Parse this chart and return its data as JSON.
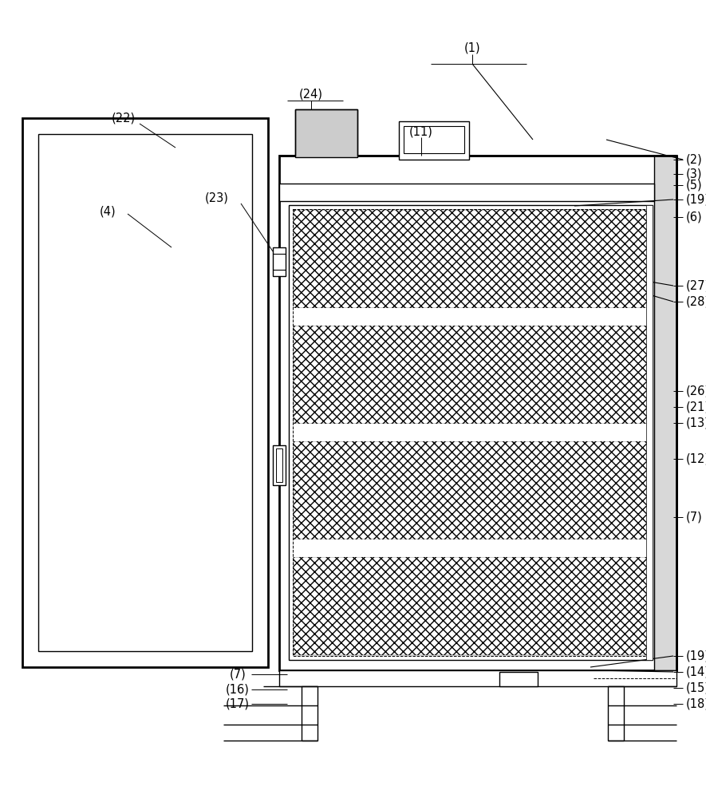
{
  "bg_color": "#ffffff",
  "lc": "#000000",
  "fig_w": 8.85,
  "fig_h": 10.0,
  "dpi": 100,
  "lw1": 1.0,
  "lw2": 2.0,
  "fs": 10.5
}
